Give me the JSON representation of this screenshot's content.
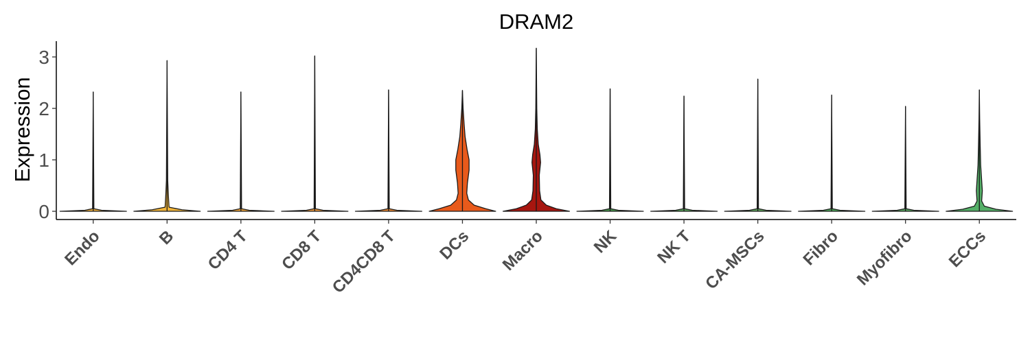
{
  "chart_data": {
    "type": "violin",
    "title": "DRAM2",
    "xlabel": "",
    "ylabel": "Expression",
    "ylim": [
      -0.15,
      3.3
    ],
    "yticks": [
      "0",
      "1",
      "2",
      "3"
    ],
    "categories": [
      "Endo",
      "B",
      "CD4 T",
      "CD8 T",
      "CD4CD8 T",
      "DCs",
      "Macro",
      "NK",
      "NK T",
      "CA-MSCs",
      "Fibro",
      "Myofibro",
      "ECCs"
    ],
    "colors": [
      "#f2b13c",
      "#f0b43a",
      "#f2a63a",
      "#f29b3c",
      "#ef8a33",
      "#e85a1b",
      "#a7160f",
      "#4a9a4f",
      "#5aa45d",
      "#63a860",
      "#4faa5c",
      "#5aa862",
      "#55b068"
    ],
    "max_values": [
      2.32,
      2.93,
      2.32,
      3.02,
      2.36,
      2.35,
      3.17,
      2.38,
      2.24,
      2.57,
      2.26,
      2.04,
      2.36
    ],
    "violin_width_profiles": [
      [
        [
          0,
          1.0
        ],
        [
          0.02,
          0.25
        ],
        [
          0.05,
          0.02
        ],
        [
          2.32,
          0.0
        ]
      ],
      [
        [
          0,
          1.0
        ],
        [
          0.03,
          0.45
        ],
        [
          0.08,
          0.06
        ],
        [
          0.3,
          0.04
        ],
        [
          0.6,
          0.02
        ],
        [
          1.2,
          0.015
        ],
        [
          2.93,
          0.0
        ]
      ],
      [
        [
          0,
          1.0
        ],
        [
          0.02,
          0.25
        ],
        [
          0.05,
          0.02
        ],
        [
          2.32,
          0.0
        ]
      ],
      [
        [
          0,
          1.0
        ],
        [
          0.02,
          0.25
        ],
        [
          0.05,
          0.02
        ],
        [
          3.02,
          0.0
        ]
      ],
      [
        [
          0,
          1.0
        ],
        [
          0.02,
          0.25
        ],
        [
          0.05,
          0.02
        ],
        [
          2.36,
          0.0
        ]
      ],
      [
        [
          0,
          1.0
        ],
        [
          0.05,
          0.7
        ],
        [
          0.12,
          0.35
        ],
        [
          0.22,
          0.18
        ],
        [
          0.35,
          0.13
        ],
        [
          0.55,
          0.15
        ],
        [
          0.8,
          0.2
        ],
        [
          1.0,
          0.2
        ],
        [
          1.2,
          0.14
        ],
        [
          1.45,
          0.08
        ],
        [
          1.7,
          0.05
        ],
        [
          2.0,
          0.02
        ],
        [
          2.35,
          0.0
        ]
      ],
      [
        [
          0,
          1.0
        ],
        [
          0.05,
          0.6
        ],
        [
          0.12,
          0.3
        ],
        [
          0.22,
          0.14
        ],
        [
          0.4,
          0.1
        ],
        [
          0.7,
          0.09
        ],
        [
          0.95,
          0.13
        ],
        [
          1.1,
          0.11
        ],
        [
          1.3,
          0.06
        ],
        [
          1.6,
          0.03
        ],
        [
          2.0,
          0.015
        ],
        [
          3.17,
          0.0
        ]
      ],
      [
        [
          0,
          1.0
        ],
        [
          0.02,
          0.25
        ],
        [
          0.05,
          0.02
        ],
        [
          2.38,
          0.0
        ]
      ],
      [
        [
          0,
          1.0
        ],
        [
          0.02,
          0.25
        ],
        [
          0.05,
          0.02
        ],
        [
          2.24,
          0.0
        ]
      ],
      [
        [
          0,
          1.0
        ],
        [
          0.02,
          0.25
        ],
        [
          0.05,
          0.02
        ],
        [
          2.57,
          0.0
        ]
      ],
      [
        [
          0,
          1.0
        ],
        [
          0.02,
          0.25
        ],
        [
          0.05,
          0.02
        ],
        [
          2.26,
          0.0
        ]
      ],
      [
        [
          0,
          1.0
        ],
        [
          0.02,
          0.25
        ],
        [
          0.05,
          0.02
        ],
        [
          2.04,
          0.0
        ]
      ],
      [
        [
          0,
          1.0
        ],
        [
          0.04,
          0.5
        ],
        [
          0.1,
          0.15
        ],
        [
          0.2,
          0.07
        ],
        [
          0.4,
          0.09
        ],
        [
          0.6,
          0.07
        ],
        [
          0.9,
          0.04
        ],
        [
          1.3,
          0.025
        ],
        [
          1.8,
          0.01
        ],
        [
          2.36,
          0.0
        ]
      ]
    ],
    "legend": "none",
    "grid": false
  }
}
